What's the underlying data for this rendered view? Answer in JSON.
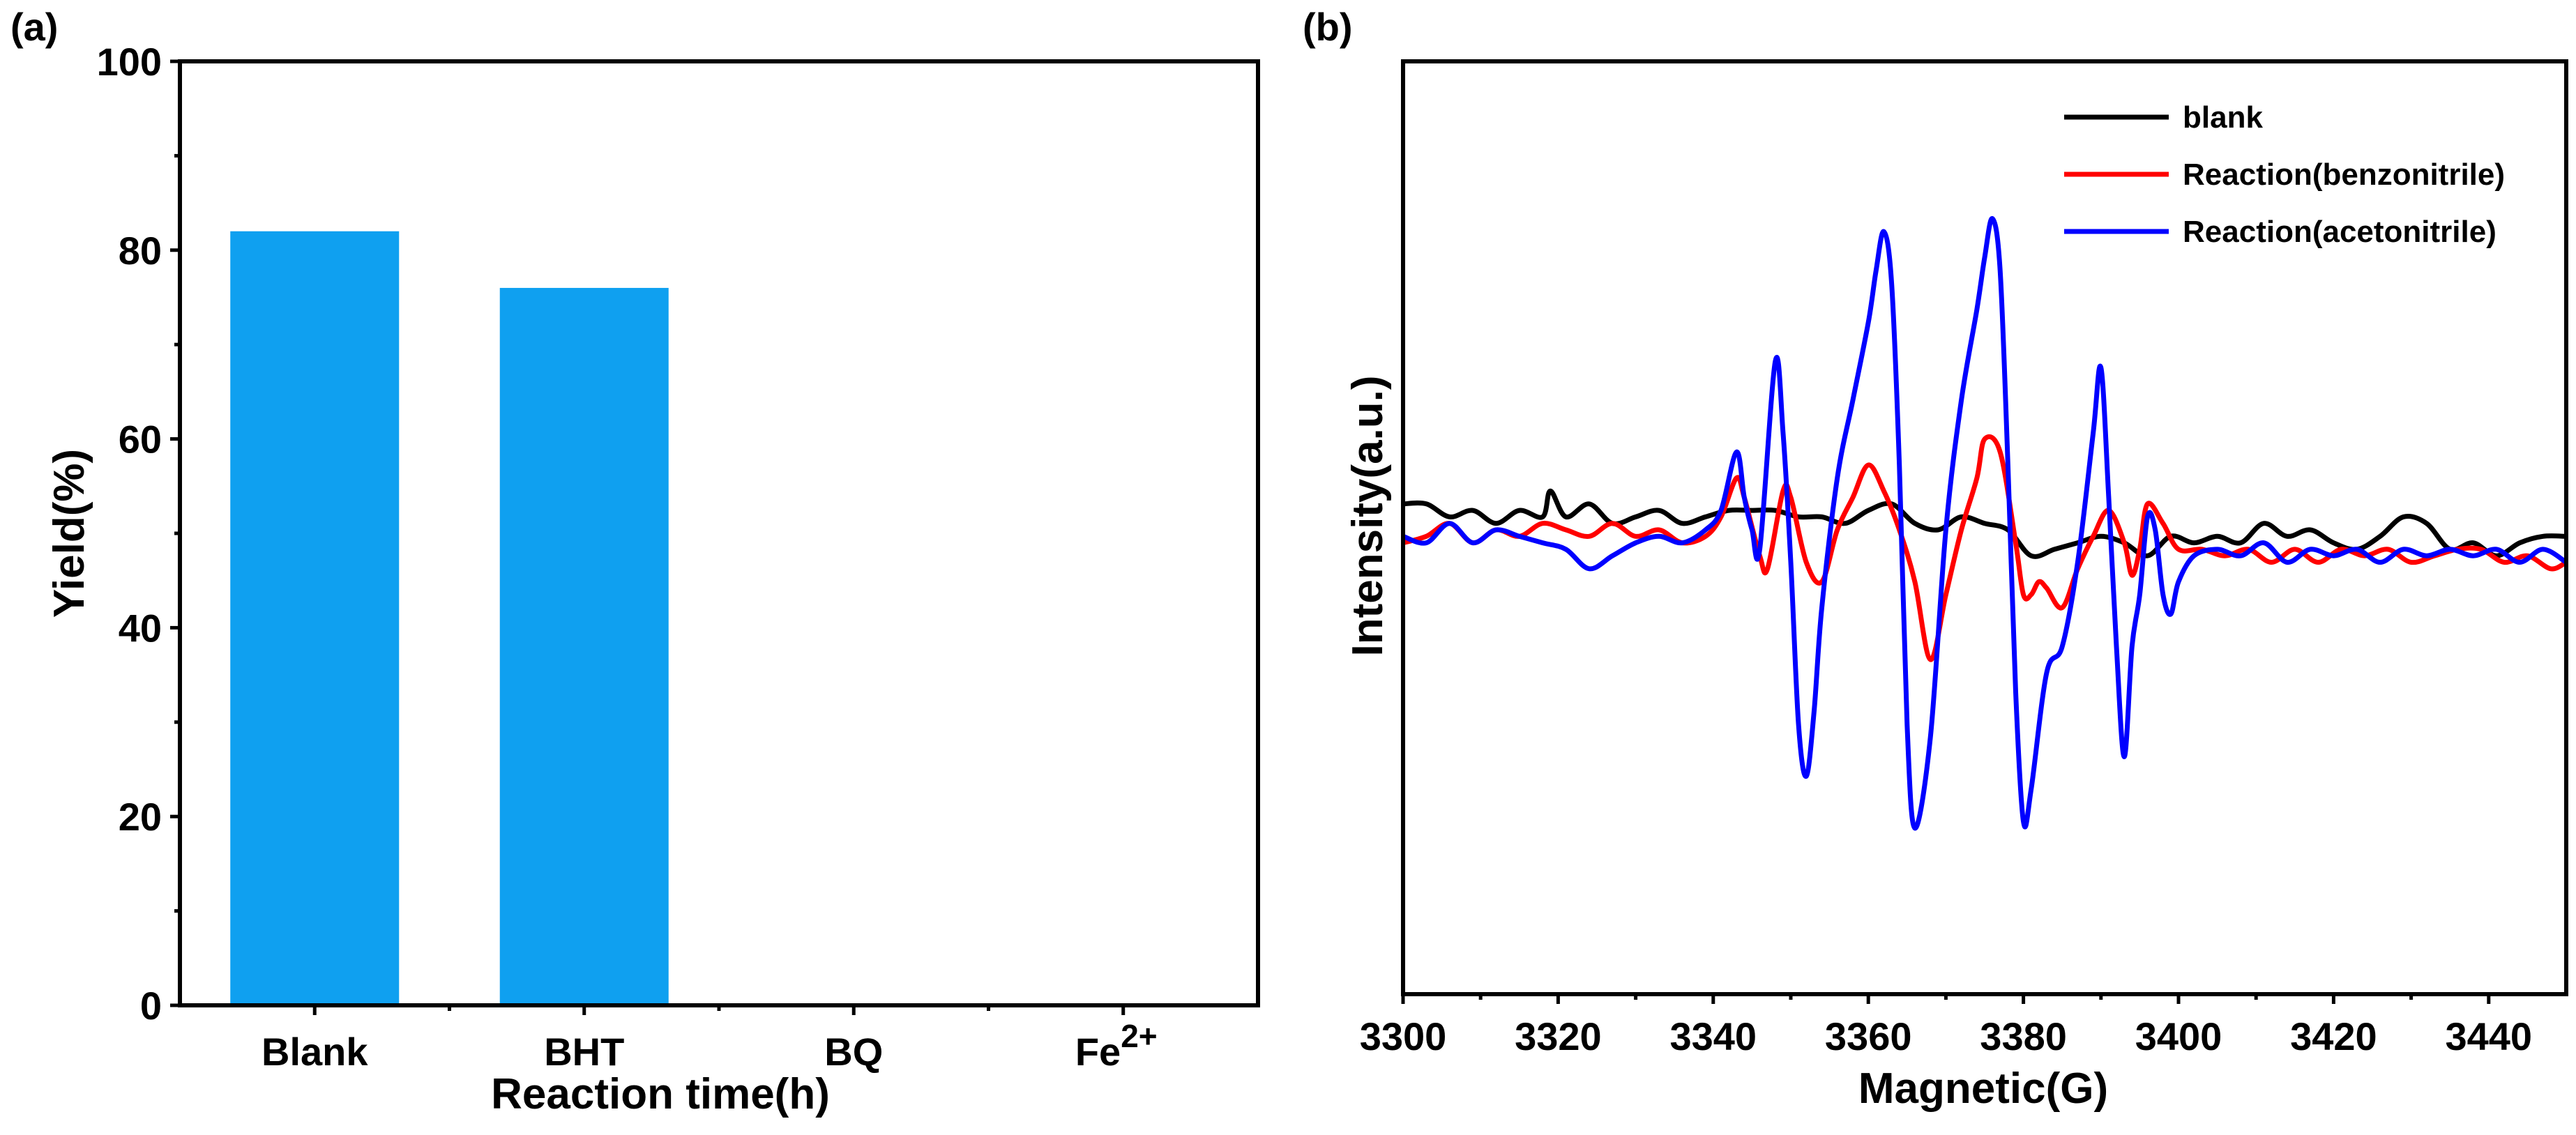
{
  "chart_data": [
    {
      "panel": "(a)",
      "type": "bar",
      "title": "",
      "xlabel": "Reaction time(h)",
      "ylabel": "Yield(%)",
      "categories": [
        "Blank",
        "BHT",
        "BQ",
        "Fe"
      ],
      "category_superscripts": [
        "",
        "",
        "",
        "2+"
      ],
      "values": [
        82,
        76,
        0,
        0
      ],
      "ylim": [
        0,
        100
      ],
      "yticks": [
        0,
        20,
        40,
        60,
        80,
        100
      ],
      "bar_color": "#0fa0f0",
      "grid": false
    },
    {
      "panel": "(b)",
      "type": "line",
      "title": "",
      "xlabel": "Magnetic(G)",
      "ylabel": "Intensity(a.u.)",
      "xlim": [
        3300,
        3450
      ],
      "xticks": [
        3300,
        3320,
        3340,
        3360,
        3380,
        3400,
        3420,
        3440
      ],
      "ylim": [
        -60,
        60
      ],
      "show_y_tick_labels": false,
      "grid": false,
      "legend_position": "top-right",
      "series": [
        {
          "name": "blank",
          "color": "#000000",
          "x": [
            3300,
            3303,
            3306,
            3309,
            3312,
            3315,
            3318,
            3319,
            3321,
            3324,
            3327,
            3330,
            3333,
            3336,
            3339,
            3342,
            3345,
            3348,
            3351,
            3354,
            3357,
            3360,
            3363,
            3366,
            3369,
            3372,
            3375,
            3378,
            3381,
            3384,
            3387,
            3390,
            3393,
            3396,
            3399,
            3402,
            3405,
            3408,
            3411,
            3414,
            3417,
            3420,
            3423,
            3426,
            3429,
            3432,
            3435,
            3438,
            3441,
            3444,
            3447,
            3450
          ],
          "y": [
            4,
            4,
            2,
            3,
            1,
            3,
            2,
            6,
            2,
            4,
            1,
            2,
            3,
            1,
            2,
            3,
            3,
            3,
            2,
            2,
            1,
            3,
            4,
            1,
            0,
            2,
            1,
            0,
            -4,
            -3,
            -2,
            -1,
            -2,
            -4,
            -1,
            -2,
            -1,
            -2,
            1,
            -1,
            0,
            -2,
            -3,
            -1,
            2,
            1,
            -3,
            -2,
            -4,
            -2,
            -1,
            -1
          ]
        },
        {
          "name": "Reaction(benzonitrile)",
          "color": "#ff0000",
          "x": [
            3300,
            3303,
            3306,
            3309,
            3312,
            3315,
            3318,
            3321,
            3324,
            3327,
            3330,
            3333,
            3336,
            3339,
            3341,
            3343,
            3344,
            3346,
            3347,
            3349,
            3350,
            3352,
            3354,
            3356,
            3358,
            3360,
            3362,
            3364,
            3366,
            3368,
            3370,
            3372,
            3374,
            3375,
            3377,
            3379,
            3380,
            3381,
            3382,
            3383,
            3385,
            3387,
            3389,
            3391,
            3393,
            3394,
            3395,
            3396,
            3398,
            3400,
            3403,
            3406,
            3409,
            3412,
            3415,
            3418,
            3421,
            3424,
            3427,
            3430,
            3433,
            3436,
            3439,
            3442,
            3445,
            3448,
            3450
          ],
          "y": [
            -2,
            -1,
            1,
            -2,
            0,
            -1,
            1,
            0,
            -1,
            1,
            -1,
            0,
            -2,
            -1,
            2,
            8,
            5,
            -4,
            -6,
            6,
            5,
            -5,
            -8,
            0,
            5,
            10,
            6,
            0,
            -8,
            -20,
            -10,
            0,
            8,
            14,
            12,
            -2,
            -10,
            -10,
            -8,
            -9,
            -12,
            -6,
            -1,
            3,
            -2,
            -7,
            -3,
            4,
            1,
            -3,
            -3,
            -4,
            -3,
            -5,
            -3,
            -5,
            -3,
            -4,
            -3,
            -5,
            -4,
            -3,
            -3,
            -5,
            -4,
            -6,
            -5
          ]
        },
        {
          "name": "Reaction(acetonitrile)",
          "color": "#0000ff",
          "x": [
            3300,
            3303,
            3306,
            3309,
            3312,
            3315,
            3318,
            3321,
            3324,
            3327,
            3330,
            3333,
            3336,
            3339,
            3341,
            3343,
            3344,
            3345,
            3346,
            3348,
            3349,
            3350,
            3351,
            3352,
            3353,
            3354,
            3356,
            3358,
            3360,
            3361,
            3362,
            3363,
            3364,
            3365,
            3366,
            3368,
            3370,
            3372,
            3374,
            3375,
            3376,
            3377,
            3378,
            3379,
            3380,
            3381,
            3383,
            3385,
            3387,
            3389,
            3390,
            3391,
            3392,
            3393,
            3394,
            3395,
            3396,
            3397,
            3398,
            3399,
            3400,
            3402,
            3405,
            3408,
            3411,
            3414,
            3417,
            3420,
            3423,
            3426,
            3429,
            3432,
            3435,
            3438,
            3441,
            3444,
            3447,
            3450
          ],
          "y": [
            -1,
            -2,
            1,
            -2,
            0,
            -1,
            -2,
            -3,
            -6,
            -4,
            -2,
            -1,
            -2,
            0,
            3,
            12,
            5,
            0,
            -3,
            26,
            15,
            -5,
            -30,
            -38,
            -28,
            -12,
            8,
            20,
            32,
            40,
            46,
            38,
            10,
            -30,
            -46,
            -32,
            0,
            20,
            34,
            42,
            48,
            40,
            10,
            -25,
            -45,
            -40,
            -22,
            -18,
            -5,
            15,
            25,
            5,
            -18,
            -35,
            -18,
            -10,
            2,
            0,
            -10,
            -13,
            -8,
            -4,
            -3,
            -4,
            -2,
            -5,
            -3,
            -4,
            -3,
            -5,
            -3,
            -4,
            -3,
            -4,
            -3,
            -5,
            -3,
            -5
          ]
        }
      ]
    }
  ]
}
